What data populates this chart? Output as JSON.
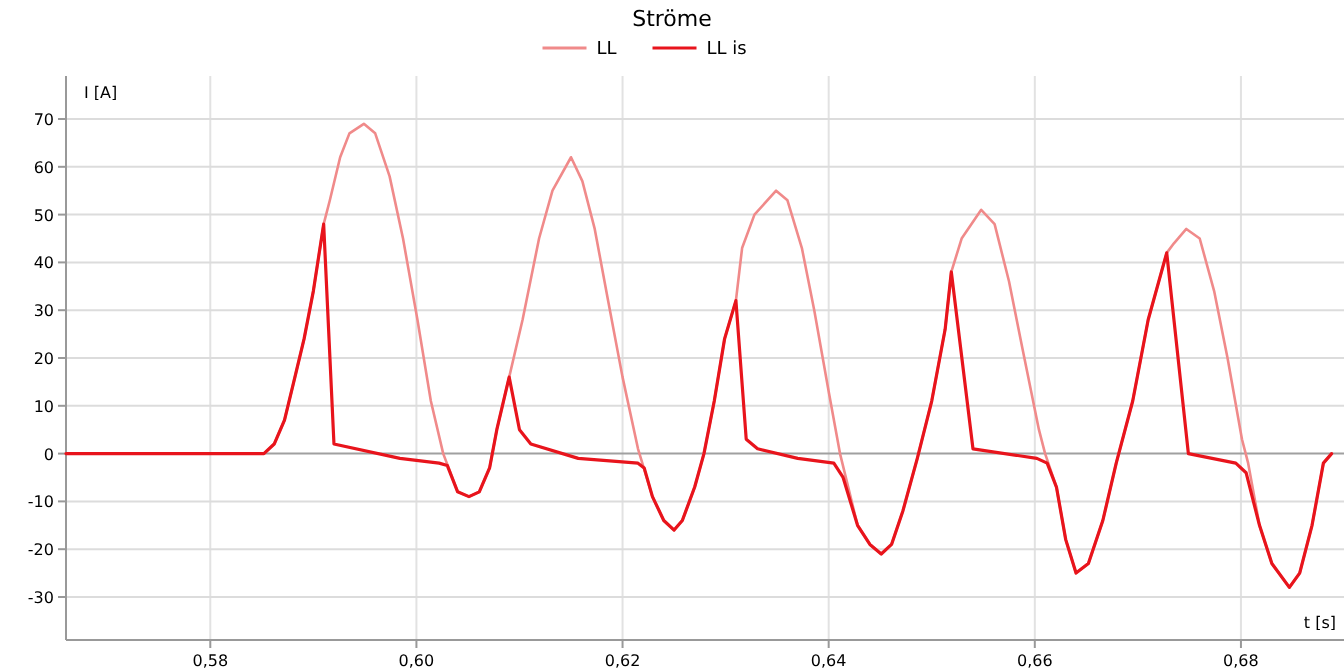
{
  "chart_data": {
    "type": "line",
    "title": "Ströme",
    "xlabel": "t [s]",
    "ylabel": "I [A]",
    "xlim": [
      0.566,
      0.69
    ],
    "ylim": [
      -39,
      79
    ],
    "xticks": [
      {
        "value": 0.58,
        "label": "0,58"
      },
      {
        "value": 0.6,
        "label": "0,60"
      },
      {
        "value": 0.62,
        "label": "0,62"
      },
      {
        "value": 0.64,
        "label": "0,64"
      },
      {
        "value": 0.66,
        "label": "0,66"
      },
      {
        "value": 0.68,
        "label": "0,68"
      }
    ],
    "yticks": [
      -30,
      -20,
      -10,
      0,
      10,
      20,
      30,
      40,
      50,
      60,
      70
    ],
    "grid": true,
    "legend": "top",
    "line_style": "solid",
    "series": [
      {
        "name": "LL",
        "color": "#f08a8a",
        "x": [
          0.566,
          0.5852,
          0.5862,
          0.5872,
          0.5881,
          0.5891,
          0.59,
          0.591,
          0.5916,
          0.5926,
          0.5935,
          0.5949,
          0.596,
          0.5974,
          0.5987,
          0.6001,
          0.6014,
          0.6026,
          0.604,
          0.6051,
          0.6061,
          0.6071,
          0.6078,
          0.609,
          0.6103,
          0.6119,
          0.6132,
          0.615,
          0.6161,
          0.6173,
          0.6186,
          0.62,
          0.6215,
          0.6229,
          0.624,
          0.625,
          0.6258,
          0.627,
          0.6279,
          0.6289,
          0.6299,
          0.631,
          0.6316,
          0.6328,
          0.6349,
          0.636,
          0.6374,
          0.6386,
          0.64,
          0.6411,
          0.6428,
          0.644,
          0.6451,
          0.6461,
          0.6472,
          0.6486,
          0.65,
          0.6513,
          0.6519,
          0.6529,
          0.6548,
          0.6561,
          0.6575,
          0.6588,
          0.6604,
          0.661,
          0.6621,
          0.663,
          0.664,
          0.6652,
          0.6666,
          0.6679,
          0.6695,
          0.671,
          0.6728,
          0.6735,
          0.6747,
          0.676,
          0.6774,
          0.6787,
          0.6801,
          0.6807,
          0.6818,
          0.683,
          0.6847,
          0.6857,
          0.6869,
          0.688,
          0.6888
        ],
        "values": [
          0,
          0,
          2,
          7,
          15,
          24,
          34,
          48,
          53,
          62,
          67,
          69,
          67,
          58,
          45,
          28,
          11,
          0,
          -8,
          -9,
          -8,
          -3,
          5,
          16,
          28,
          45,
          55,
          62,
          57,
          47,
          32,
          16,
          1,
          -9,
          -14,
          -16,
          -14,
          -7,
          0,
          11,
          24,
          32,
          43,
          50,
          55,
          53,
          43,
          30,
          13,
          0,
          -15,
          -19,
          -21,
          -19,
          -12,
          -1,
          11,
          26,
          38,
          45,
          51,
          48,
          36,
          22,
          5,
          0,
          -7,
          -18,
          -25,
          -23,
          -14,
          -2,
          11,
          28,
          42,
          44,
          47,
          45,
          34,
          20,
          3,
          -2,
          -15,
          -23,
          -28,
          -25,
          -15,
          -2,
          0
        ]
      },
      {
        "name": "LL is",
        "color": "#e8141c",
        "x": [
          0.566,
          0.5852,
          0.5862,
          0.5872,
          0.5881,
          0.5891,
          0.59,
          0.591,
          0.592,
          0.5984,
          0.6022,
          0.603,
          0.604,
          0.6051,
          0.6061,
          0.6071,
          0.6078,
          0.609,
          0.61,
          0.6111,
          0.6157,
          0.6215,
          0.6221,
          0.6229,
          0.624,
          0.625,
          0.6258,
          0.627,
          0.6279,
          0.6289,
          0.6299,
          0.631,
          0.632,
          0.6331,
          0.637,
          0.6405,
          0.6414,
          0.6428,
          0.644,
          0.6451,
          0.6461,
          0.6472,
          0.6486,
          0.65,
          0.6513,
          0.6519,
          0.654,
          0.6602,
          0.6612,
          0.6621,
          0.663,
          0.664,
          0.6652,
          0.6666,
          0.6679,
          0.6695,
          0.671,
          0.6728,
          0.6749,
          0.6795,
          0.6805,
          0.6818,
          0.683,
          0.6847,
          0.6857,
          0.6869,
          0.688,
          0.6888
        ],
        "values": [
          0,
          0,
          2,
          7,
          15,
          24,
          34,
          48,
          2,
          -1,
          -2,
          -2.5,
          -8,
          -9,
          -8,
          -3,
          5,
          16,
          5,
          2,
          -1,
          -2,
          -3,
          -9,
          -14,
          -16,
          -14,
          -7,
          0,
          11,
          24,
          32,
          3,
          1,
          -1,
          -2,
          -5,
          -15,
          -19,
          -21,
          -19,
          -12,
          -1,
          11,
          26,
          38,
          1,
          -1,
          -2,
          -7,
          -18,
          -25,
          -23,
          -14,
          -2,
          11,
          28,
          42,
          0,
          -2,
          -4,
          -15,
          -23,
          -28,
          -25,
          -15,
          -2,
          0
        ]
      }
    ]
  }
}
